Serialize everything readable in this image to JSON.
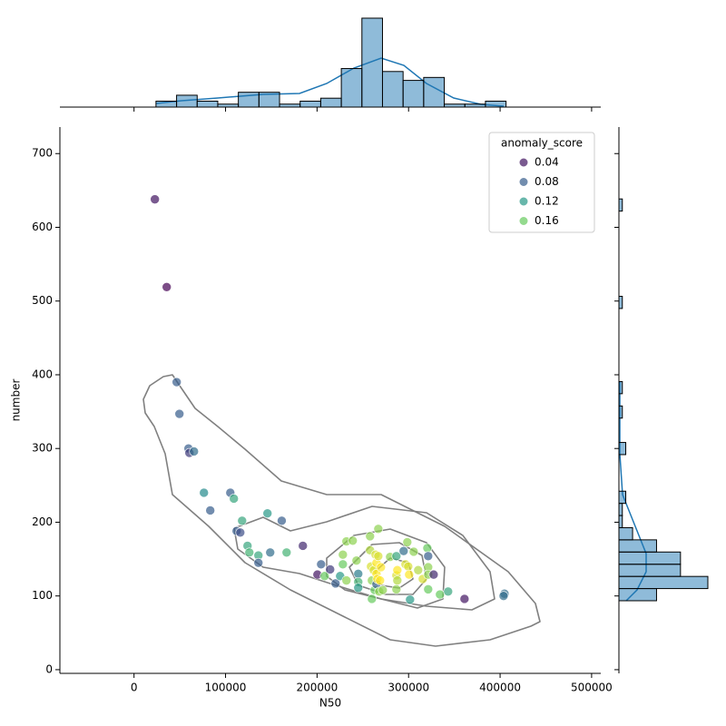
{
  "chart_data": {
    "type": "scatter",
    "x_label": "N50",
    "y_label": "number",
    "xlim": [
      -81000,
      510000
    ],
    "ylim": [
      -5,
      736
    ],
    "xticks": [
      0,
      100000,
      200000,
      300000,
      400000,
      500000
    ],
    "yticks": [
      0,
      100,
      200,
      300,
      400,
      500,
      600,
      700
    ],
    "colormap": "viridis",
    "legend": {
      "title": "anomaly_score",
      "position": "upper right",
      "entries": [
        0.04,
        0.08,
        0.12,
        0.16
      ]
    },
    "x": [
      22800,
      35700,
      46600,
      49600,
      59500,
      60500,
      65500,
      76400,
      83300,
      105200,
      109100,
      145800,
      161400,
      112100,
      116100,
      118100,
      124000,
      126000,
      135900,
      135900,
      148800,
      166700,
      184500,
      200400,
      204400,
      208300,
      214300,
      220200,
      225200,
      228200,
      228200,
      232100,
      232100,
      239000,
      243100,
      245000,
      245000,
      245000,
      257900,
      257900,
      258900,
      259900,
      259900,
      261900,
      262900,
      263900,
      264900,
      264900,
      264900,
      265900,
      266900,
      266900,
      267900,
      268800,
      269800,
      271800,
      279800,
      286700,
      286700,
      286700,
      287700,
      287700,
      294600,
      296600,
      298600,
      299600,
      300600,
      301600,
      305600,
      310500,
      315500,
      320500,
      321400,
      321400,
      321400,
      321400,
      327400,
      334300,
      343200,
      361100,
      404800,
      403800
    ],
    "y": [
      638,
      519,
      390,
      347,
      300,
      294,
      296,
      240,
      216,
      240,
      232,
      212,
      202,
      188,
      186,
      202,
      168,
      159,
      155,
      145,
      159,
      159,
      168,
      129,
      143,
      127,
      136,
      117,
      127,
      143,
      156,
      121,
      174,
      175,
      148,
      130,
      119,
      111,
      181,
      162,
      140,
      121,
      96,
      135,
      108,
      156,
      145,
      130,
      116,
      123,
      191,
      154,
      106,
      121,
      139,
      108,
      153,
      154,
      128,
      109,
      135,
      121,
      161,
      143,
      173,
      140,
      129,
      95,
      160,
      135,
      123,
      165,
      154,
      139,
      129,
      109,
      129,
      102,
      106,
      96,
      103,
      100
    ],
    "hue": [
      0.04,
      0.03,
      0.08,
      0.08,
      0.08,
      0.06,
      0.09,
      0.11,
      0.08,
      0.08,
      0.13,
      0.12,
      0.08,
      0.08,
      0.07,
      0.13,
      0.13,
      0.14,
      0.13,
      0.08,
      0.09,
      0.14,
      0.05,
      0.04,
      0.08,
      0.16,
      0.06,
      0.08,
      0.12,
      0.16,
      0.17,
      0.17,
      0.17,
      0.17,
      0.17,
      0.1,
      0.14,
      0.12,
      0.17,
      0.18,
      0.19,
      0.17,
      0.16,
      0.19,
      0.16,
      0.19,
      0.2,
      0.2,
      0.08,
      0.2,
      0.17,
      0.19,
      0.17,
      0.2,
      0.2,
      0.17,
      0.17,
      0.13,
      0.19,
      0.17,
      0.2,
      0.18,
      0.09,
      0.19,
      0.17,
      0.19,
      0.2,
      0.12,
      0.17,
      0.18,
      0.19,
      0.16,
      0.08,
      0.17,
      0.17,
      0.16,
      0.05,
      0.16,
      0.13,
      0.04,
      0.09,
      0.09
    ],
    "marginal_x": {
      "color": "#1f77b4",
      "ylim": [
        0,
        30
      ],
      "bins": [
        24000,
        46500,
        69000,
        91500,
        114000,
        136500,
        159000,
        181500,
        204000,
        226500,
        249000,
        271500,
        294000,
        316500,
        339000,
        361500,
        384000,
        406500
      ],
      "counts": [
        2,
        4,
        2,
        1,
        5,
        5,
        1,
        2,
        3,
        13,
        30,
        12,
        9,
        10,
        1,
        1,
        2
      ]
    },
    "marginal_y": {
      "color": "#1f77b4",
      "xlim": [
        0,
        26
      ],
      "bins": [
        93.5,
        110.0,
        126.5,
        143.0,
        159.6,
        176.1,
        192.6,
        209.1,
        225.6,
        242.1,
        258.7,
        275.2,
        291.7,
        308.2,
        324.7,
        341.2,
        357.7,
        374.3,
        390.8,
        407.3,
        423.8,
        440.3,
        456.8,
        473.3,
        489.9,
        506.4,
        522.9,
        539.4,
        555.9,
        572.4,
        588.9,
        605.5,
        622.0,
        638.5
      ],
      "counts": [
        11,
        26,
        18,
        18,
        11,
        4,
        1,
        1,
        2,
        0,
        0,
        0,
        2,
        0,
        0,
        1,
        0,
        1,
        0,
        0,
        0,
        0,
        0,
        0,
        1,
        0,
        0,
        0,
        0,
        0,
        0,
        0,
        1
      ]
    }
  }
}
